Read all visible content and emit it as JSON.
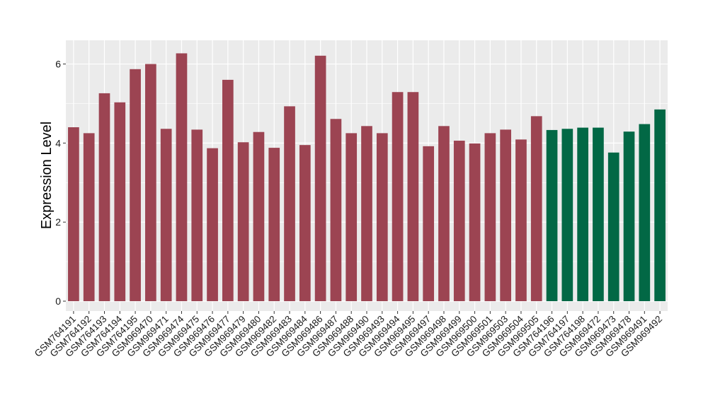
{
  "chart_data": {
    "type": "bar",
    "title": "",
    "xlabel": "",
    "ylabel": "Expression Level",
    "ylim": [
      -0.25,
      6.6
    ],
    "yticks": [
      0,
      2,
      4,
      6
    ],
    "grid": true,
    "legend": "none",
    "colors": {
      "group1": "#9c4452",
      "group2": "#026845",
      "panel": "#ebebeb",
      "grid": "#ffffff"
    },
    "categories": [
      "GSM764191",
      "GSM764192",
      "GSM764193",
      "GSM764194",
      "GSM764195",
      "GSM969470",
      "GSM969471",
      "GSM969474",
      "GSM969475",
      "GSM969476",
      "GSM969477",
      "GSM969479",
      "GSM969480",
      "GSM969482",
      "GSM969483",
      "GSM969484",
      "GSM969486",
      "GSM969487",
      "GSM969488",
      "GSM969490",
      "GSM969493",
      "GSM969494",
      "GSM969495",
      "GSM969497",
      "GSM969498",
      "GSM969499",
      "GSM969500",
      "GSM969501",
      "GSM969503",
      "GSM969504",
      "GSM969505",
      "GSM764196",
      "GSM764197",
      "GSM764198",
      "GSM969472",
      "GSM969473",
      "GSM969478",
      "GSM969491",
      "GSM969492"
    ],
    "values": [
      4.4,
      4.25,
      5.26,
      5.03,
      5.87,
      6.0,
      4.36,
      6.27,
      4.34,
      3.87,
      5.6,
      4.02,
      4.28,
      3.88,
      4.93,
      3.95,
      6.21,
      4.61,
      4.25,
      4.43,
      4.25,
      5.29,
      5.29,
      3.92,
      4.43,
      4.06,
      3.99,
      4.25,
      4.34,
      4.09,
      4.68,
      4.33,
      4.36,
      4.39,
      4.39,
      3.76,
      4.29,
      4.48,
      4.85
    ],
    "groups": [
      "group1",
      "group1",
      "group1",
      "group1",
      "group1",
      "group1",
      "group1",
      "group1",
      "group1",
      "group1",
      "group1",
      "group1",
      "group1",
      "group1",
      "group1",
      "group1",
      "group1",
      "group1",
      "group1",
      "group1",
      "group1",
      "group1",
      "group1",
      "group1",
      "group1",
      "group1",
      "group1",
      "group1",
      "group1",
      "group1",
      "group1",
      "group2",
      "group2",
      "group2",
      "group2",
      "group2",
      "group2",
      "group2",
      "group2"
    ]
  }
}
